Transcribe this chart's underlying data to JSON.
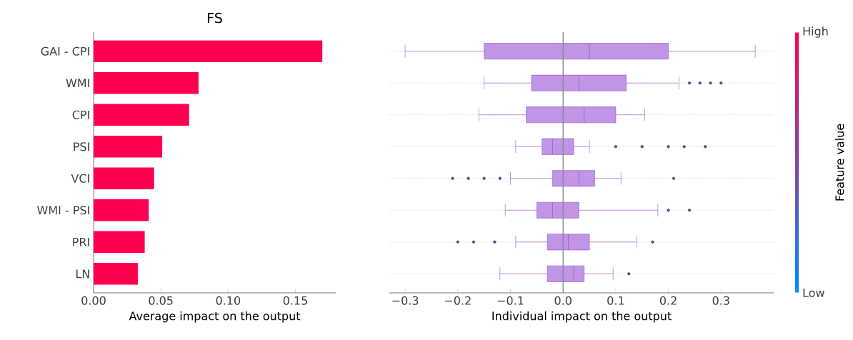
{
  "chart_data": [
    {
      "type": "bar",
      "orientation": "horizontal",
      "title": "FS",
      "xlabel": "Average impact on the output",
      "categories": [
        "GAI - CPI",
        "WMI",
        "CPI",
        "PSI",
        "VCI",
        "WMI - PSI",
        "PRI",
        "LN"
      ],
      "values": [
        0.17,
        0.078,
        0.071,
        0.051,
        0.045,
        0.041,
        0.038,
        0.033
      ],
      "color": "#ff0051",
      "xlim": [
        0,
        0.18
      ],
      "xticks": [
        {
          "value": 0,
          "label": "0.00"
        },
        {
          "value": 0.05,
          "label": "0.05"
        },
        {
          "value": 0.1,
          "label": "0.10"
        },
        {
          "value": 0.15,
          "label": "0.15"
        }
      ]
    },
    {
      "type": "box",
      "orientation": "horizontal",
      "xlabel": "Individual impact on the output",
      "clabel": "Feature value",
      "categories": [
        null,
        null,
        null,
        null,
        null,
        null,
        null,
        null
      ],
      "color": "#8c3fd0",
      "tick_labels": "x",
      "grid": "y",
      "boxes": [
        {
          "low": -0.3,
          "q1": -0.15,
          "median": 0.05,
          "q3": 0.2,
          "high": 0.365
        },
        {
          "low": -0.15,
          "q1": -0.06,
          "median": 0.03,
          "q3": 0.12,
          "high": 0.22,
          "outliers": [
            0.24,
            0.26,
            0.28,
            0.3
          ]
        },
        {
          "low": -0.16,
          "q1": -0.07,
          "median": 0.04,
          "q3": 0.1,
          "high": 0.155
        },
        {
          "low": -0.09,
          "q1": -0.04,
          "median": -0.02,
          "q3": 0.02,
          "high": 0.05,
          "outliers": [
            0.1,
            0.15,
            0.2,
            0.23,
            0.27
          ]
        },
        {
          "low": -0.1,
          "q1": -0.02,
          "median": 0.03,
          "q3": 0.06,
          "high": 0.11,
          "outliers": [
            -0.21,
            -0.18,
            -0.15,
            -0.12,
            0.21
          ]
        },
        {
          "low": -0.11,
          "q1": -0.05,
          "median": -0.02,
          "q3": 0.03,
          "high": 0.18,
          "outliers": [
            0.2,
            0.24
          ]
        },
        {
          "low": -0.09,
          "q1": -0.03,
          "median": 0.01,
          "q3": 0.05,
          "high": 0.14,
          "outliers": [
            -0.2,
            -0.17,
            -0.13,
            0.17
          ]
        },
        {
          "low": -0.12,
          "q1": -0.03,
          "median": 0.02,
          "q3": 0.04,
          "high": 0.095,
          "outliers": [
            0.125
          ]
        }
      ],
      "xlim": [
        -0.33,
        0.4
      ],
      "xticks": [
        {
          "value": -0.3,
          "label": "−0.3"
        },
        {
          "value": -0.2,
          "label": "−0.2"
        },
        {
          "value": -0.1,
          "label": "−0.1"
        },
        {
          "value": 0,
          "label": "0.0"
        },
        {
          "value": 0.1,
          "label": "0.1"
        },
        {
          "value": 0.2,
          "label": "0.2"
        },
        {
          "value": 0.3,
          "label": "0.3"
        }
      ],
      "ref_lines": [
        {
          "axis": "x",
          "value": 0,
          "color": "#888888"
        }
      ],
      "clim": [
        0,
        1
      ],
      "cticks": [
        {
          "value": 0,
          "label": "Low"
        },
        {
          "value": 1,
          "label": "High"
        }
      ]
    }
  ]
}
